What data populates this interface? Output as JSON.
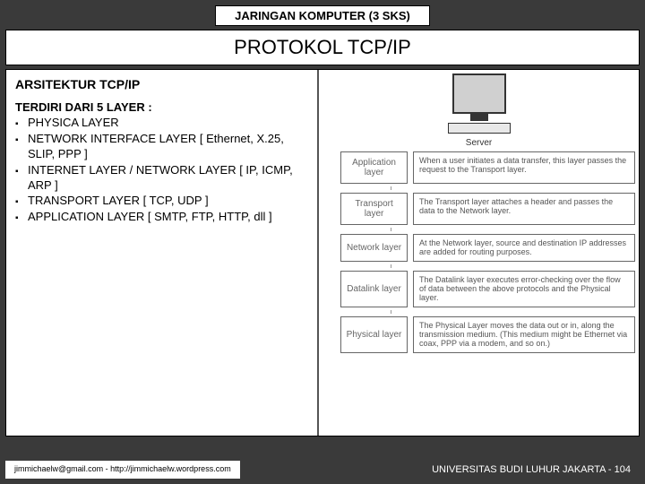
{
  "header": {
    "course": "JARINGAN KOMPUTER (3 SKS)"
  },
  "title": "PROTOKOL TCP/IP",
  "left": {
    "section": "ARSITEKTUR TCP/IP",
    "listTitle": "TERDIRI DARI 5 LAYER :",
    "items": [
      "PHYSICA LAYER",
      "NETWORK INTERFACE LAYER [ Ethernet, X.25, SLIP, PPP ]",
      "INTERNET LAYER / NETWORK LAYER [ IP, ICMP, ARP ]",
      "TRANSPORT LAYER  [ TCP, UDP ]",
      "APPLICATION LAYER  [ SMTP, FTP, HTTP, dll ]"
    ]
  },
  "diagram": {
    "serverLabel": "Server",
    "layers": [
      {
        "name": "Application layer",
        "desc": "When a user initiates a data transfer, this layer passes the request to the Transport layer."
      },
      {
        "name": "Transport layer",
        "desc": "The Transport layer attaches a header and passes the data to the Network layer."
      },
      {
        "name": "Network layer",
        "desc": "At the Network layer, source and destination IP addresses are added for routing purposes."
      },
      {
        "name": "Datalink layer",
        "desc": "The Datalink layer executes error-checking over the flow of data between the above protocols and the Physical layer."
      },
      {
        "name": "Physical layer",
        "desc": "The Physical Layer moves the data out or in, along the transmission medium. (This medium might be Ethernet via coax, PPP via a modem, and so on.)"
      }
    ]
  },
  "footer": {
    "left": "jimmichaelw@gmail.com - http://jimmichaelw.wordpress.com",
    "right": "UNIVERSITAS BUDI LUHUR JAKARTA  - 104"
  },
  "colors": {
    "bg": "#3a3a3a",
    "boxBorder": "#000000",
    "layerBorder": "#666666"
  }
}
